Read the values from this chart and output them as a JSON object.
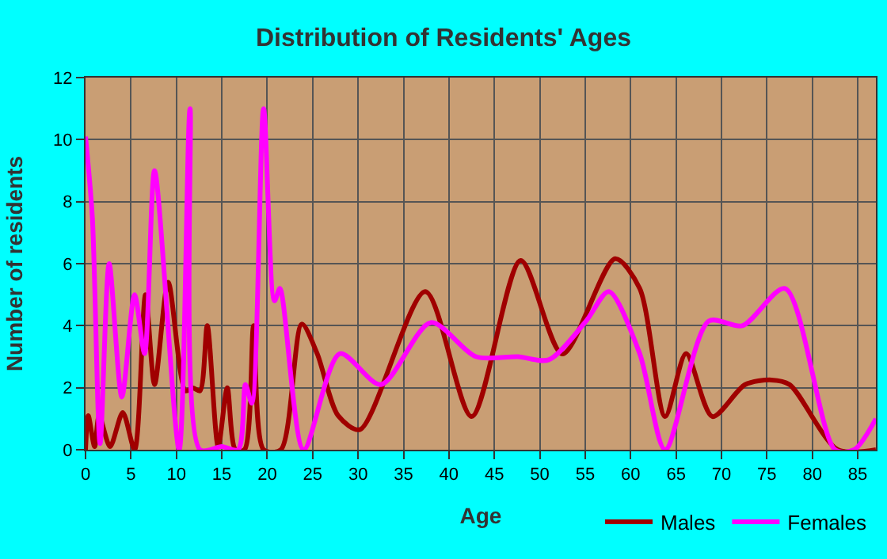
{
  "chart_data": {
    "type": "line",
    "title": "Distribution of Residents' Ages",
    "xlabel": "Age",
    "ylabel": "Number of residents",
    "xlim": [
      0,
      87
    ],
    "ylim": [
      0,
      12
    ],
    "xticks": [
      0,
      5,
      10,
      15,
      20,
      25,
      30,
      35,
      40,
      45,
      50,
      55,
      60,
      65,
      70,
      75,
      80,
      85
    ],
    "yticks": [
      0,
      2,
      4,
      6,
      8,
      10,
      12
    ],
    "grid": true,
    "legend": "bottom right",
    "marker": "none",
    "line_style": "solid",
    "series": [
      {
        "name": "Males",
        "color": "#a00000",
        "x": [
          0,
          0.3,
          1,
          1.5,
          2.7,
          4.1,
          5.4,
          6.6,
          7.6,
          9.1,
          11,
          11.8,
          12.6,
          13.4,
          14.6,
          15.6,
          16.5,
          17.5,
          18.5,
          19.6,
          21.5,
          23.8,
          25.5,
          27.8,
          30.2,
          37.4,
          42.5,
          47.9,
          52.5,
          58.3,
          61,
          63.8,
          66.1,
          69,
          72.6,
          75.5,
          77.5,
          82.8,
          87
        ],
        "values": [
          0,
          1.1,
          0.1,
          1.1,
          0.1,
          1.2,
          0,
          5,
          2.1,
          5.4,
          1.9,
          2,
          1.9,
          4,
          0.1,
          2,
          0,
          0,
          4,
          0,
          0,
          4.05,
          3.1,
          1.1,
          0.65,
          5.1,
          1.07,
          6.1,
          3.09,
          6.16,
          5.2,
          1.07,
          3.1,
          1.07,
          2.1,
          2.25,
          2.1,
          0,
          0
        ]
      },
      {
        "name": "Females",
        "color": "#ff00ff",
        "x": [
          0,
          0.75,
          1.6,
          2.6,
          4,
          5.4,
          6.5,
          7.6,
          10.3,
          11.5,
          12.6,
          15,
          16.8,
          17.6,
          18.3,
          19.6,
          20.8,
          21.4,
          24,
          28,
          32.5,
          38,
          43,
          47.6,
          51,
          55.1,
          57.6,
          61,
          63.8,
          68.6,
          72.3,
          77,
          82.5,
          84.6,
          87
        ],
        "values": [
          10.1,
          7.5,
          0.2,
          6,
          1.7,
          5,
          3.1,
          9,
          0,
          11,
          0,
          0.1,
          0,
          2.1,
          1.5,
          11,
          4.8,
          5.2,
          0,
          3.1,
          2.1,
          4.1,
          3,
          3,
          2.9,
          4.15,
          5.1,
          3.1,
          0,
          4.15,
          4,
          5.2,
          0,
          0,
          1
        ]
      }
    ]
  }
}
